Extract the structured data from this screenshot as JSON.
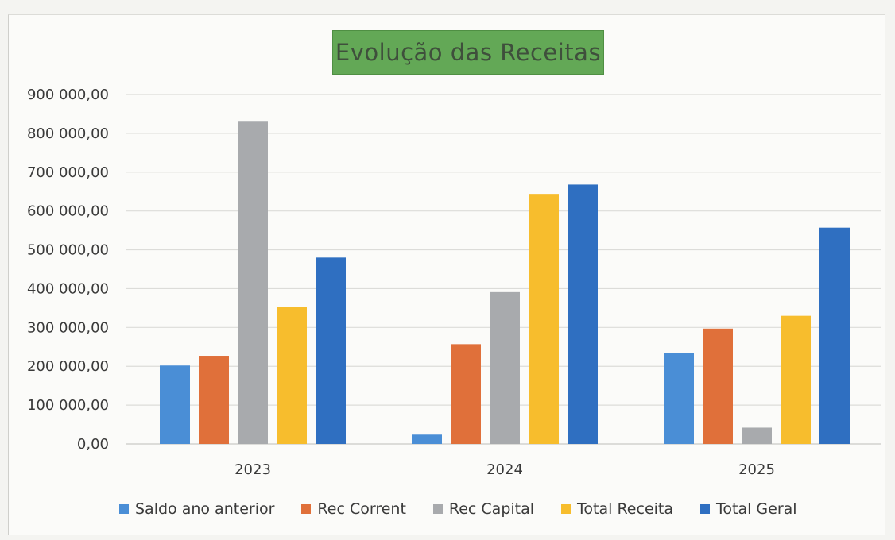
{
  "chart_data": {
    "type": "bar",
    "title": "Evolução das Receitas",
    "categories": [
      "2023",
      "2024",
      "2025"
    ],
    "series": [
      {
        "name": "Saldo ano anterior",
        "color": "#4a8ed6",
        "values": [
          202000,
          24000,
          234000
        ]
      },
      {
        "name": "Rec Corrent",
        "color": "#e0703a",
        "values": [
          227000,
          257000,
          297000
        ]
      },
      {
        "name": "Rec Capital",
        "color": "#a8aaad",
        "values": [
          832000,
          391000,
          42000
        ]
      },
      {
        "name": "Total Receita",
        "color": "#f7bd2d",
        "values": [
          353000,
          644000,
          330000
        ]
      },
      {
        "name": "Total Geral",
        "color": "#2f6fc1",
        "values": [
          480000,
          668000,
          557000
        ]
      }
    ],
    "ylim": [
      0,
      900000
    ],
    "yticks": [
      "0,00",
      "100 000,00",
      "200 000,00",
      "300 000,00",
      "400 000,00",
      "500 000,00",
      "600 000,00",
      "700 000,00",
      "800 000,00",
      "900 000,00"
    ],
    "grid": true,
    "legend_position": "bottom"
  }
}
